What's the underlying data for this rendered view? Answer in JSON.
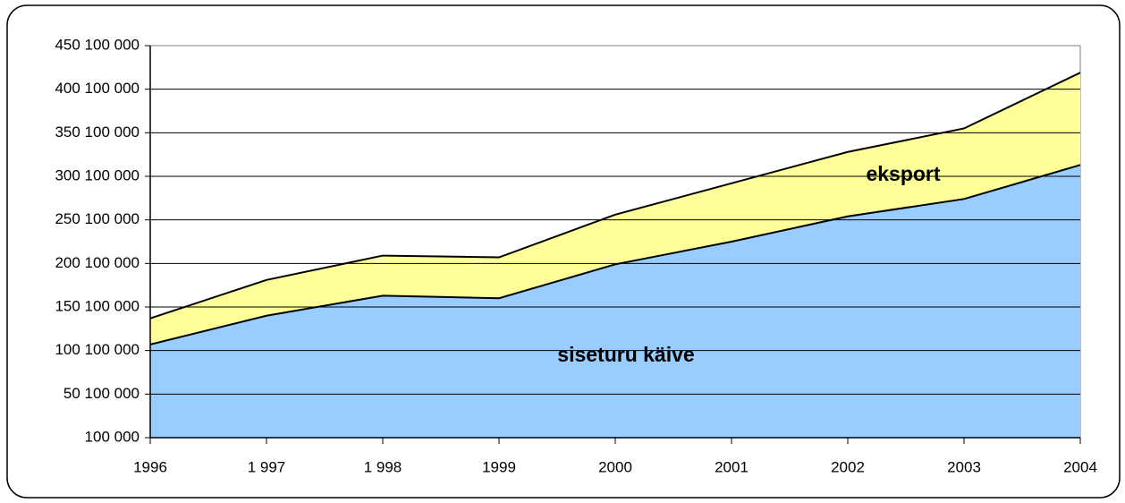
{
  "chart_data": {
    "type": "stacked-area",
    "categories": [
      "1996",
      "1 997",
      "1 998",
      "1999",
      "2000",
      "2001",
      "2002",
      "2003",
      "2004"
    ],
    "series": [
      {
        "name": "siseturu käive",
        "color": "#99ccff",
        "values": [
          107000000,
          140000000,
          163000000,
          160000000,
          199000000,
          225000000,
          254000000,
          274000000,
          313000000
        ]
      },
      {
        "name": "eksport",
        "color": "#ffff99",
        "values": [
          30000000,
          41000000,
          46000000,
          47000000,
          57000000,
          67000000,
          74000000,
          81000000,
          106000000
        ]
      }
    ],
    "ylim": [
      100000,
      450100000
    ],
    "yticks": [
      {
        "value": 100000,
        "label": "100 000"
      },
      {
        "value": 50100000,
        "label": "50 100 000"
      },
      {
        "value": 100100000,
        "label": "100 100 000"
      },
      {
        "value": 150100000,
        "label": "150 100 000"
      },
      {
        "value": 200100000,
        "label": "200 100 000"
      },
      {
        "value": 250100000,
        "label": "250 100 000"
      },
      {
        "value": 300100000,
        "label": "300 100 000"
      },
      {
        "value": 350100000,
        "label": "350 100 000"
      },
      {
        "value": 400100000,
        "label": "400 100 000"
      },
      {
        "value": 450100000,
        "label": "450 100 000"
      }
    ],
    "grid": true
  }
}
